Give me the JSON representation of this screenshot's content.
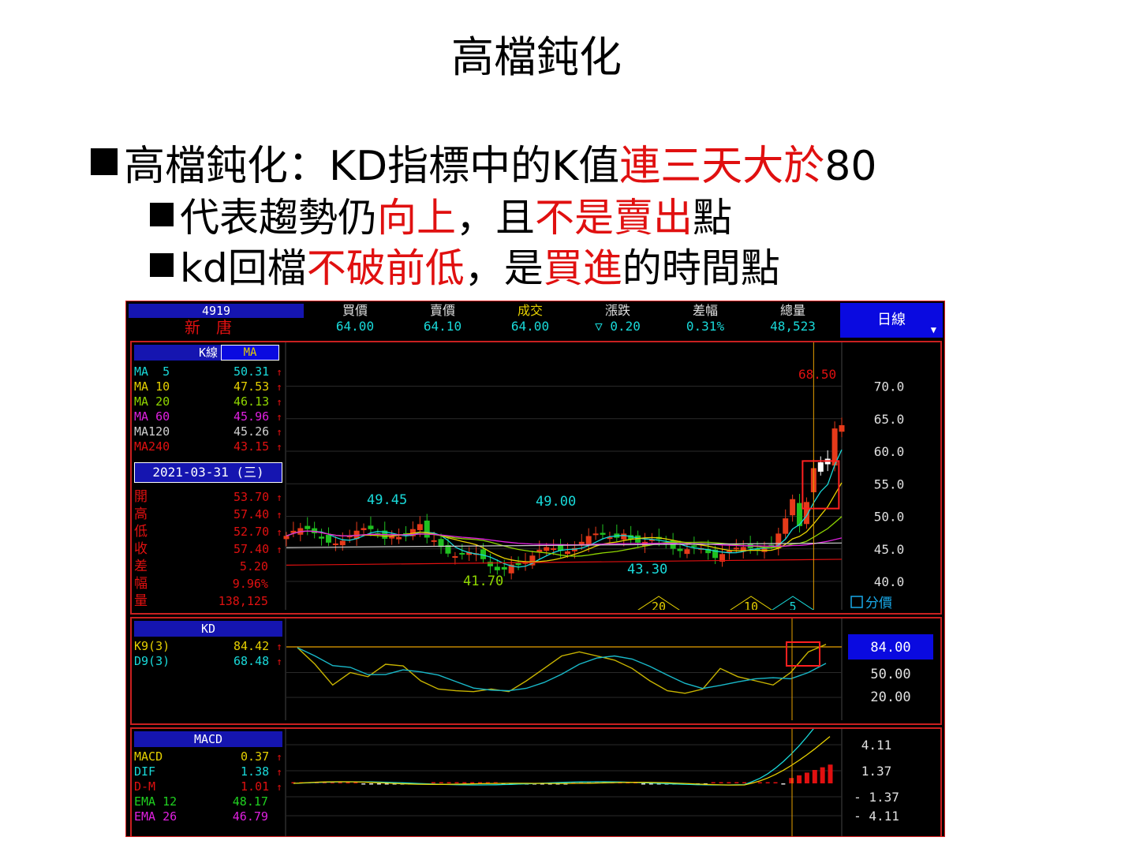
{
  "slide": {
    "title": "高檔鈍化",
    "bullets": [
      [
        {
          "t": "高檔鈍化：KD指標中的K值",
          "c": "#000"
        },
        {
          "t": "連三天大於",
          "c": "#e01010"
        },
        {
          "t": "80",
          "c": "#000"
        }
      ],
      [
        {
          "t": "代表趨勢仍",
          "c": "#000"
        },
        {
          "t": "向上",
          "c": "#e01010"
        },
        {
          "t": "，且",
          "c": "#000"
        },
        {
          "t": "不是賣出",
          "c": "#e01010"
        },
        {
          "t": "點",
          "c": "#000"
        }
      ],
      [
        {
          "t": "kd回檔",
          "c": "#000"
        },
        {
          "t": "不破前低",
          "c": "#e01010"
        },
        {
          "t": "，是",
          "c": "#000"
        },
        {
          "t": "買進",
          "c": "#e01010"
        },
        {
          "t": "的時間點",
          "c": "#000"
        }
      ]
    ]
  },
  "quote": {
    "code": "4919",
    "name": "新唐",
    "columns": [
      {
        "label": "買價",
        "value": "64.00",
        "label_color": "#e0e0e0"
      },
      {
        "label": "賣價",
        "value": "64.10",
        "label_color": "#e0e0e0"
      },
      {
        "label": "成交",
        "value": "64.00",
        "label_color": "#e6d000"
      },
      {
        "label": "漲跌",
        "value": "▽ 0.20",
        "label_color": "#e0e0e0"
      },
      {
        "label": "差幅",
        "value": "0.31%",
        "label_color": "#e0e0e0"
      },
      {
        "label": "總量",
        "value": "48,523",
        "label_color": "#e0e0e0"
      }
    ],
    "period": "日線"
  },
  "kline": {
    "tab_k": "K線",
    "tab_ma": "MA",
    "ma": [
      {
        "label": "MA  5",
        "value": "50.31",
        "color": "#19d9d9"
      },
      {
        "label": "MA 10",
        "value": "47.53",
        "color": "#e6d000"
      },
      {
        "label": "MA 20",
        "value": "46.13",
        "color": "#8fd600"
      },
      {
        "label": "MA 60",
        "value": "45.96",
        "color": "#e020e0"
      },
      {
        "label": "MA120",
        "value": "45.26",
        "color": "#d0d0d0"
      },
      {
        "label": "MA240",
        "value": "43.15",
        "color": "#e01010"
      }
    ],
    "date": "2021-03-31 (三)",
    "ohlc": [
      {
        "label": "開",
        "value": "53.70"
      },
      {
        "label": "高",
        "value": "57.40"
      },
      {
        "label": "低",
        "value": "52.70"
      },
      {
        "label": "收",
        "value": "57.40"
      },
      {
        "label": "差",
        "value": "5.20"
      },
      {
        "label": "幅",
        "value": "9.96%"
      },
      {
        "label": "量",
        "value": "138,125"
      }
    ],
    "y_ticks": [
      "70.0",
      "65.0",
      "60.0",
      "55.0",
      "50.0",
      "45.0",
      "40.0"
    ],
    "peak_labels": [
      "49.45",
      "49.00",
      "68.50"
    ],
    "trough_labels": [
      "41.70",
      "43.30"
    ],
    "markers": [
      "20",
      "10",
      "5"
    ],
    "fen_jia": "分價"
  },
  "kd": {
    "title": "KD",
    "k_label": "K9(3)",
    "k_value": "84.42",
    "d_label": "D9(3)",
    "d_value": "68.48",
    "current": "84.00",
    "ticks": [
      "50.00",
      "20.00"
    ]
  },
  "macd": {
    "title": "MACD",
    "rows": [
      {
        "label": "MACD",
        "value": "0.37",
        "color": "#e6d000",
        "arrow": true
      },
      {
        "label": "DIF",
        "value": "1.38",
        "color": "#19d9d9",
        "arrow": true
      },
      {
        "label": "D-M",
        "value": "1.01",
        "color": "#e01010",
        "arrow": true
      },
      {
        "label": "EMA 12",
        "value": "48.17",
        "color": "#20d020",
        "arrow": false
      },
      {
        "label": "EMA 26",
        "value": "46.79",
        "color": "#e020e0",
        "arrow": false
      }
    ],
    "ticks": [
      "4.11",
      "1.37",
      "- 1.37",
      "- 4.11"
    ]
  },
  "colors": {
    "up_candle": "#e63a1a",
    "down_candle": "#20c020",
    "k_line": "#c8b400",
    "d_line": "#19b9c9",
    "guide": "#e6a000",
    "highlight": "#ff2020"
  }
}
